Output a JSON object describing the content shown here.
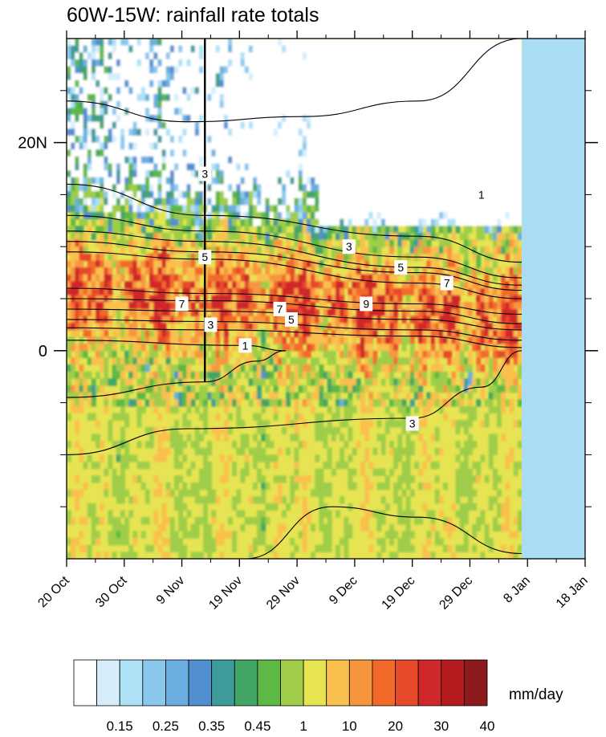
{
  "chart_data": {
    "type": "heatmap",
    "title": "60W-15W: rainfall rate totals",
    "xlabel": "",
    "ylabel": "",
    "x_tick_labels": [
      "20 Oct",
      "30 Oct",
      "9 Nov",
      "19 Nov",
      "29 Nov",
      "9 Dec",
      "19 Dec",
      "29 Dec",
      "8 Jan",
      "18 Jan"
    ],
    "y_tick_labels": [
      "20N",
      "0"
    ],
    "xlim": [
      "20 Oct",
      "18 Jan"
    ],
    "ylim": [
      -20,
      30
    ],
    "y_ticks": [
      20,
      0
    ],
    "y_minor_ticks": [
      25,
      15,
      10,
      5,
      -5,
      -10,
      -15
    ],
    "data_end": "7 Jan",
    "missing_color": "#aadcf4",
    "colorbar": {
      "unit": "mm/day",
      "colors": [
        "#ffffff",
        "#d6eefb",
        "#afe1f7",
        "#8ac8ee",
        "#6aaedf",
        "#528fd0",
        "#3d9b9a",
        "#43a566",
        "#5db845",
        "#9fcd4a",
        "#e6e452",
        "#fac04d",
        "#f7963f",
        "#f26a2b",
        "#e64a2a",
        "#d0282a",
        "#b41b1f",
        "#8d1a1c"
      ],
      "labels": [
        "0.15",
        "0.25",
        "0.35",
        "0.45",
        "1",
        "10",
        "20",
        "30",
        "40"
      ]
    },
    "contour_labels": [
      "1",
      "3",
      "5",
      "7",
      "9"
    ],
    "contour_label_annotations": [
      {
        "text": "3",
        "x": "13 Nov",
        "y": 17
      },
      {
        "text": "5",
        "x": "13 Nov",
        "y": 9
      },
      {
        "text": "7",
        "x": "9 Nov",
        "y": 4.5
      },
      {
        "text": "3",
        "x": "14 Nov",
        "y": 2.5
      },
      {
        "text": "1",
        "x": "20 Nov",
        "y": 0.5
      },
      {
        "text": "7",
        "x": "26 Nov",
        "y": 4
      },
      {
        "text": "5",
        "x": "28 Nov",
        "y": 3
      },
      {
        "text": "9",
        "x": "11 Dec",
        "y": 4.5
      },
      {
        "text": "3",
        "x": "8 Dec",
        "y": 10
      },
      {
        "text": "5",
        "x": "17 Dec",
        "y": 8
      },
      {
        "text": "7",
        "x": "25 Dec",
        "y": 6.5
      },
      {
        "text": "3",
        "x": "19 Dec",
        "y": -7
      },
      {
        "text": "1",
        "x": "31 Dec",
        "y": 15
      }
    ]
  }
}
